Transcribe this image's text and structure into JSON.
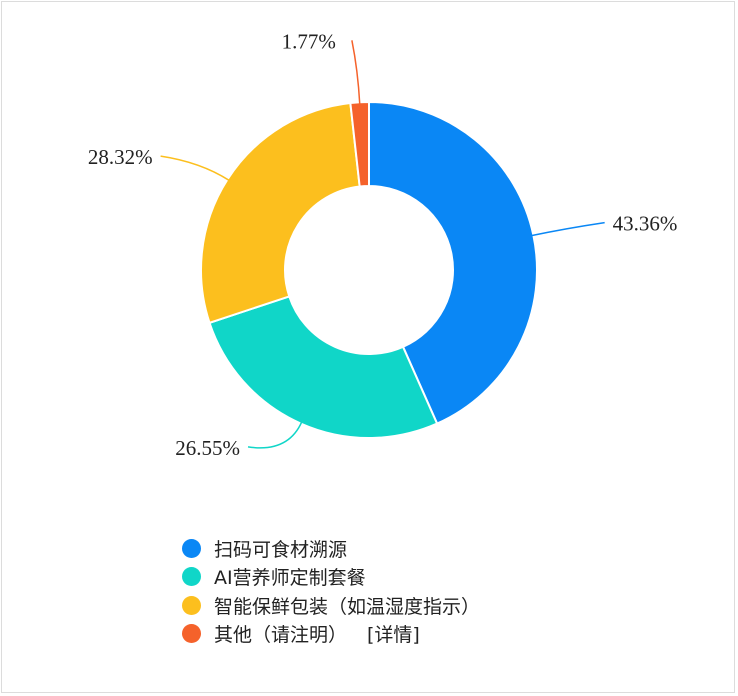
{
  "chart_data": {
    "type": "pie",
    "donut": true,
    "labels": [
      "扫码可食材溯源",
      "AI营养师定制套餐",
      "智能保鲜包装（如温湿度指示）",
      "其他（请注明）"
    ],
    "values": [
      43.36,
      26.55,
      28.32,
      1.77
    ],
    "value_labels": [
      "43.36%",
      "26.55%",
      "28.32%",
      "1.77%"
    ],
    "colors": [
      "#0a87f5",
      "#10d6c8",
      "#fcbf1e",
      "#f5622b"
    ],
    "legend_position": "bottom"
  },
  "legend": {
    "items": [
      {
        "label": "扫码可食材溯源",
        "color": "#0a87f5"
      },
      {
        "label": "AI营养师定制套餐",
        "color": "#10d6c8"
      },
      {
        "label": "智能保鲜包装（如温湿度指示）",
        "color": "#fcbf1e"
      },
      {
        "label": "其他（请注明）",
        "color": "#f5622b",
        "link": "[详情]"
      }
    ]
  }
}
